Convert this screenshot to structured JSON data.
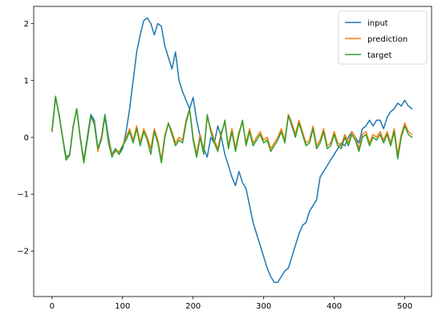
{
  "chart_data": {
    "type": "line",
    "title": "",
    "xlabel": "",
    "ylabel": "",
    "xlim": [
      -26,
      538
    ],
    "ylim": [
      -2.8,
      2.3
    ],
    "xticks": [
      0,
      100,
      200,
      300,
      400,
      500
    ],
    "yticks": [
      -2,
      -1,
      0,
      1,
      2
    ],
    "xtick_labels": [
      "0",
      "100",
      "200",
      "300",
      "400",
      "500"
    ],
    "ytick_labels": [
      "−2",
      "−1",
      "0",
      "1",
      "2"
    ],
    "grid": false,
    "legend": {
      "placement": "top-right",
      "entries": [
        "input",
        "prediction",
        "target"
      ]
    },
    "series": [
      {
        "name": "input",
        "color": "#1f77b4",
        "x": [
          0,
          5,
          10,
          15,
          20,
          25,
          30,
          35,
          40,
          45,
          50,
          55,
          60,
          65,
          70,
          75,
          80,
          85,
          90,
          95,
          100,
          105,
          110,
          115,
          120,
          125,
          130,
          135,
          140,
          145,
          150,
          155,
          160,
          165,
          170,
          175,
          180,
          185,
          190,
          195,
          200,
          205,
          210,
          215,
          220,
          225,
          230,
          235,
          240,
          245,
          250,
          255,
          260,
          265,
          270,
          275,
          280,
          285,
          290,
          295,
          300,
          305,
          310,
          315,
          320,
          325,
          330,
          335,
          340,
          345,
          350,
          355,
          360,
          365,
          370,
          375,
          380,
          385,
          390,
          395,
          400,
          405,
          410,
          415,
          420,
          425,
          430,
          435,
          440,
          445,
          450,
          455,
          460,
          465,
          470,
          475,
          480,
          485,
          490,
          495,
          500,
          505,
          510
        ],
        "values": [
          0.1,
          0.7,
          0.4,
          0.0,
          -0.35,
          -0.3,
          0.2,
          0.5,
          0.0,
          -0.4,
          0.0,
          0.4,
          0.3,
          -0.2,
          0.0,
          0.4,
          0.0,
          -0.3,
          -0.2,
          -0.3,
          -0.2,
          0.1,
          0.5,
          1.0,
          1.5,
          1.8,
          2.05,
          2.1,
          2.0,
          1.8,
          2.0,
          1.95,
          1.6,
          1.4,
          1.2,
          1.5,
          1.0,
          0.8,
          0.65,
          0.5,
          0.7,
          0.3,
          0.0,
          -0.2,
          -0.35,
          0.0,
          -0.1,
          0.2,
          0.0,
          -0.3,
          -0.5,
          -0.7,
          -0.85,
          -0.6,
          -0.8,
          -0.9,
          -1.2,
          -1.5,
          -1.7,
          -1.9,
          -2.1,
          -2.3,
          -2.45,
          -2.55,
          -2.55,
          -2.45,
          -2.35,
          -2.3,
          -2.1,
          -1.9,
          -1.7,
          -1.55,
          -1.5,
          -1.3,
          -1.2,
          -1.1,
          -0.7,
          -0.6,
          -0.5,
          -0.4,
          -0.3,
          -0.2,
          -0.1,
          -0.15,
          0.0,
          0.1,
          0.0,
          -0.1,
          0.15,
          0.2,
          0.3,
          0.2,
          0.3,
          0.3,
          0.15,
          0.35,
          0.45,
          0.5,
          0.6,
          0.55,
          0.65,
          0.55,
          0.5
        ]
      },
      {
        "name": "prediction",
        "color": "#ff7f0e",
        "x": [
          0,
          5,
          10,
          15,
          20,
          25,
          30,
          35,
          40,
          45,
          50,
          55,
          60,
          65,
          70,
          75,
          80,
          85,
          90,
          95,
          100,
          105,
          110,
          115,
          120,
          125,
          130,
          135,
          140,
          145,
          150,
          155,
          160,
          165,
          170,
          175,
          180,
          185,
          190,
          195,
          200,
          205,
          210,
          215,
          220,
          225,
          230,
          235,
          240,
          245,
          250,
          255,
          260,
          265,
          270,
          275,
          280,
          285,
          290,
          295,
          300,
          305,
          310,
          315,
          320,
          325,
          330,
          335,
          340,
          345,
          350,
          355,
          360,
          365,
          370,
          375,
          380,
          385,
          390,
          395,
          400,
          405,
          410,
          415,
          420,
          425,
          430,
          435,
          440,
          445,
          450,
          455,
          460,
          465,
          470,
          475,
          480,
          485,
          490,
          495,
          500,
          505,
          510
        ],
        "values": [
          0.1,
          0.72,
          0.4,
          0.0,
          -0.4,
          -0.3,
          0.2,
          0.5,
          0.0,
          -0.42,
          -0.05,
          0.35,
          0.25,
          -0.25,
          0.0,
          0.35,
          -0.05,
          -0.3,
          -0.25,
          -0.25,
          -0.15,
          0.0,
          0.15,
          -0.05,
          0.2,
          -0.1,
          0.15,
          0.0,
          -0.2,
          0.15,
          -0.05,
          -0.4,
          0.05,
          0.25,
          0.1,
          -0.1,
          0.0,
          -0.05,
          0.3,
          0.5,
          0.0,
          -0.3,
          0.05,
          -0.25,
          0.35,
          0.15,
          -0.05,
          -0.2,
          0.1,
          0.25,
          -0.15,
          0.15,
          -0.2,
          0.1,
          0.25,
          -0.1,
          0.15,
          -0.1,
          0.0,
          0.1,
          -0.05,
          0.0,
          -0.2,
          -0.1,
          0.0,
          0.15,
          -0.05,
          0.4,
          0.25,
          0.05,
          0.3,
          0.1,
          -0.1,
          -0.05,
          0.2,
          -0.15,
          -0.05,
          0.15,
          -0.15,
          -0.1,
          0.1,
          -0.1,
          -0.15,
          0.05,
          -0.1,
          0.1,
          0.0,
          -0.2,
          0.05,
          0.1,
          -0.1,
          0.05,
          0.0,
          0.1,
          -0.05,
          0.1,
          -0.1,
          0.15,
          -0.3,
          0.05,
          0.25,
          0.1,
          0.05
        ]
      },
      {
        "name": "target",
        "color": "#2ca02c",
        "x": [
          0,
          5,
          10,
          15,
          20,
          25,
          30,
          35,
          40,
          45,
          50,
          55,
          60,
          65,
          70,
          75,
          80,
          85,
          90,
          95,
          100,
          105,
          110,
          115,
          120,
          125,
          130,
          135,
          140,
          145,
          150,
          155,
          160,
          165,
          170,
          175,
          180,
          185,
          190,
          195,
          200,
          205,
          210,
          215,
          220,
          225,
          230,
          235,
          240,
          245,
          250,
          255,
          260,
          265,
          270,
          275,
          280,
          285,
          290,
          295,
          300,
          305,
          310,
          315,
          320,
          325,
          330,
          335,
          340,
          345,
          350,
          355,
          360,
          365,
          370,
          375,
          380,
          385,
          390,
          395,
          400,
          405,
          410,
          415,
          420,
          425,
          430,
          435,
          440,
          445,
          450,
          455,
          460,
          465,
          470,
          475,
          480,
          485,
          490,
          495,
          500,
          505,
          510
        ],
        "values": [
          0.12,
          0.72,
          0.38,
          -0.02,
          -0.4,
          -0.32,
          0.18,
          0.5,
          -0.02,
          -0.45,
          -0.05,
          0.38,
          0.22,
          -0.2,
          -0.05,
          0.38,
          -0.1,
          -0.35,
          -0.2,
          -0.3,
          -0.15,
          -0.05,
          0.1,
          -0.1,
          0.15,
          -0.15,
          0.1,
          -0.05,
          -0.3,
          0.1,
          -0.1,
          -0.45,
          0.0,
          0.25,
          0.05,
          -0.15,
          -0.05,
          -0.1,
          0.25,
          0.5,
          -0.05,
          -0.35,
          0.0,
          -0.3,
          0.4,
          0.1,
          -0.1,
          -0.25,
          0.05,
          0.3,
          -0.2,
          0.1,
          -0.25,
          0.05,
          0.3,
          -0.15,
          0.1,
          -0.15,
          -0.05,
          0.05,
          -0.1,
          -0.05,
          -0.25,
          -0.15,
          -0.05,
          0.1,
          -0.1,
          0.38,
          0.2,
          0.0,
          0.25,
          0.05,
          -0.15,
          -0.1,
          0.15,
          -0.2,
          -0.1,
          0.1,
          -0.2,
          -0.15,
          0.05,
          -0.15,
          -0.2,
          0.0,
          -0.15,
          0.05,
          -0.05,
          -0.25,
          0.0,
          0.05,
          -0.15,
          0.0,
          -0.05,
          0.05,
          -0.1,
          0.05,
          -0.15,
          0.1,
          -0.38,
          0.0,
          0.2,
          0.05,
          0.0
        ]
      }
    ]
  }
}
